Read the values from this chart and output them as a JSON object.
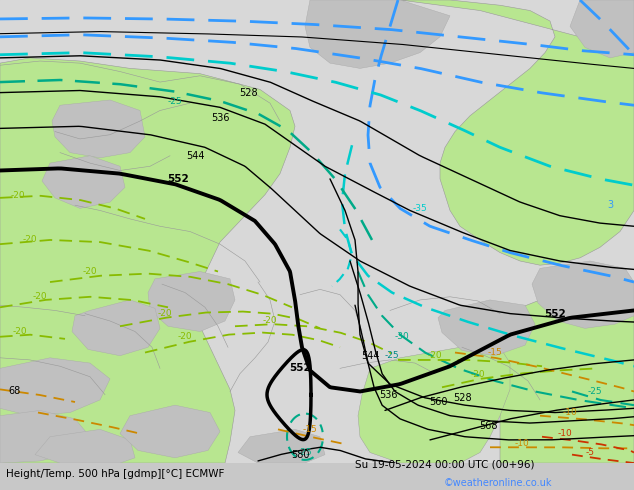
{
  "title_left": "Height/Temp. 500 hPa [gdmp][°C] ECMWF",
  "title_right": "Su 19-05-2024 00:00 UTC (00+96)",
  "watermark": "©weatheronline.co.uk",
  "bg_gray": "#c8c8c8",
  "land_green": "#b8e690",
  "land_gray": "#c0c0c0",
  "sea_gray": "#d8d8d8",
  "black": "#000000",
  "blue_dash": "#3399ff",
  "cyan_dash": "#00cccc",
  "teal_dash": "#00aa88",
  "green_dash": "#88bb00",
  "orange_dash": "#cc8800",
  "red_dash": "#cc3300",
  "watermark_color": "#4488ff",
  "border_color": "#999999"
}
